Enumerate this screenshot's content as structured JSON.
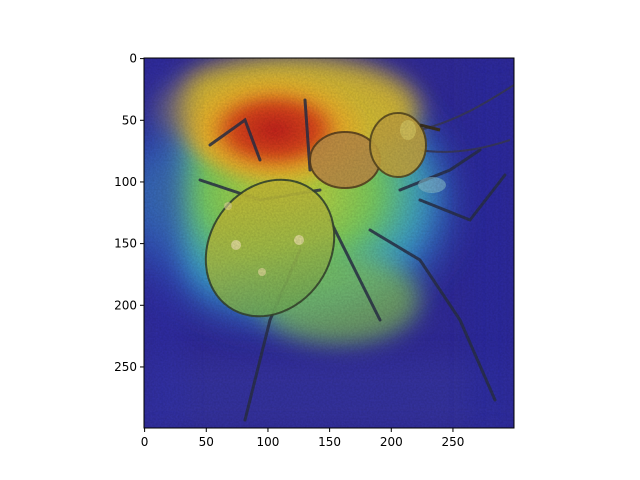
{
  "figure": {
    "type": "heatmap-overlay",
    "description_colormap": "jet",
    "x_ticks": [
      "0",
      "50",
      "100",
      "150",
      "200",
      "250"
    ],
    "y_ticks": [
      "0",
      "50",
      "100",
      "150",
      "200",
      "250"
    ],
    "x_range": [
      0,
      299
    ],
    "y_range": [
      0,
      299
    ],
    "y_inverted": true,
    "grid": false
  },
  "colors": {
    "low": "#1a1aa8",
    "mid_low": "#28b4c8",
    "mid": "#b4dc3c",
    "mid_high": "#f0c828",
    "high": "#d22a1e",
    "beetle_body": "#7c8a4a",
    "beetle_head": "#a07840"
  }
}
